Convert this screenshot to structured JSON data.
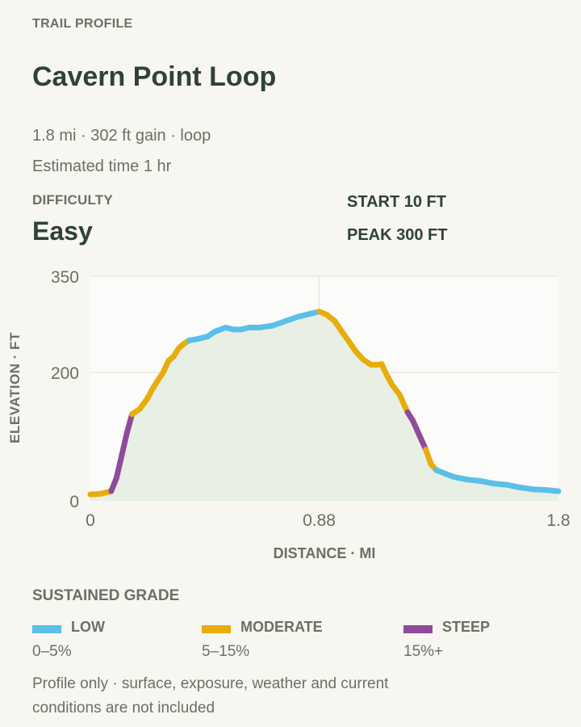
{
  "header": {
    "eyebrow": "TRAIL PROFILE",
    "title": "Cavern Point Loop",
    "meta_line1": "1.8 mi · 302 ft gain · loop",
    "meta_line2": "Estimated time 1 hr"
  },
  "difficulty": {
    "label": "DIFFICULTY",
    "value": "Easy"
  },
  "stats": {
    "start": "START 10 FT",
    "peak": "PEAK 300 FT"
  },
  "chart_data": {
    "type": "line",
    "title": "",
    "xlabel": "DISTANCE · MI",
    "ylabel": "ELEVATION · FT",
    "xlim": [
      0,
      1.8
    ],
    "ylim": [
      0,
      350
    ],
    "x_ticks": [
      0,
      0.88,
      1.8
    ],
    "x_tick_labels": [
      "0",
      "0.88",
      "1.8"
    ],
    "y_ticks": [
      0,
      200,
      350
    ],
    "y_tick_labels": [
      "0",
      "200",
      "350"
    ],
    "grid": true,
    "area_fill": true,
    "grade_colors": {
      "low": "#5bbfe9",
      "moderate": "#e8ac0c",
      "steep": "#8e4b9c"
    },
    "points": [
      [
        0.0,
        10,
        "moderate"
      ],
      [
        0.04,
        11,
        "moderate"
      ],
      [
        0.08,
        15,
        "moderate"
      ],
      [
        0.1,
        35,
        "steep"
      ],
      [
        0.12,
        70,
        "steep"
      ],
      [
        0.14,
        105,
        "steep"
      ],
      [
        0.16,
        135,
        "steep"
      ],
      [
        0.19,
        143,
        "moderate"
      ],
      [
        0.22,
        160,
        "moderate"
      ],
      [
        0.24,
        175,
        "moderate"
      ],
      [
        0.26,
        188,
        "moderate"
      ],
      [
        0.28,
        200,
        "moderate"
      ],
      [
        0.3,
        218,
        "moderate"
      ],
      [
        0.32,
        225,
        "moderate"
      ],
      [
        0.34,
        238,
        "moderate"
      ],
      [
        0.36,
        245,
        "moderate"
      ],
      [
        0.38,
        250,
        "moderate"
      ],
      [
        0.41,
        252,
        "low"
      ],
      [
        0.45,
        256,
        "low"
      ],
      [
        0.48,
        264,
        "low"
      ],
      [
        0.52,
        270,
        "low"
      ],
      [
        0.55,
        267,
        "low"
      ],
      [
        0.58,
        267,
        "low"
      ],
      [
        0.61,
        270,
        "low"
      ],
      [
        0.65,
        270,
        "low"
      ],
      [
        0.7,
        273,
        "low"
      ],
      [
        0.75,
        280,
        "low"
      ],
      [
        0.8,
        287,
        "low"
      ],
      [
        0.85,
        292,
        "low"
      ],
      [
        0.88,
        295,
        "low"
      ],
      [
        0.91,
        290,
        "moderate"
      ],
      [
        0.94,
        280,
        "moderate"
      ],
      [
        0.97,
        262,
        "moderate"
      ],
      [
        1.0,
        245,
        "moderate"
      ],
      [
        1.02,
        233,
        "moderate"
      ],
      [
        1.05,
        220,
        "moderate"
      ],
      [
        1.08,
        212,
        "moderate"
      ],
      [
        1.1,
        212,
        "moderate"
      ],
      [
        1.12,
        213,
        "moderate"
      ],
      [
        1.14,
        196,
        "moderate"
      ],
      [
        1.16,
        181,
        "moderate"
      ],
      [
        1.19,
        165,
        "moderate"
      ],
      [
        1.22,
        138,
        "moderate"
      ],
      [
        1.24,
        125,
        "steep"
      ],
      [
        1.27,
        98,
        "steep"
      ],
      [
        1.29,
        80,
        "steep"
      ],
      [
        1.31,
        57,
        "moderate"
      ],
      [
        1.33,
        48,
        "moderate"
      ],
      [
        1.36,
        43,
        "low"
      ],
      [
        1.4,
        37,
        "low"
      ],
      [
        1.45,
        33,
        "low"
      ],
      [
        1.5,
        31,
        "low"
      ],
      [
        1.55,
        27,
        "low"
      ],
      [
        1.6,
        25,
        "low"
      ],
      [
        1.65,
        21,
        "low"
      ],
      [
        1.7,
        18,
        "low"
      ],
      [
        1.75,
        17,
        "low"
      ],
      [
        1.8,
        15,
        "low"
      ]
    ]
  },
  "legend": {
    "title": "SUSTAINED GRADE",
    "items": [
      {
        "name": "LOW",
        "range": "0–5%",
        "color": "#5bbfe9"
      },
      {
        "name": "MODERATE",
        "range": "5–15%",
        "color": "#e8ac0c"
      },
      {
        "name": "STEEP",
        "range": "15%+",
        "color": "#8e4b9c"
      }
    ]
  },
  "note": "Profile only · surface, exposure, weather and current conditions are not included"
}
